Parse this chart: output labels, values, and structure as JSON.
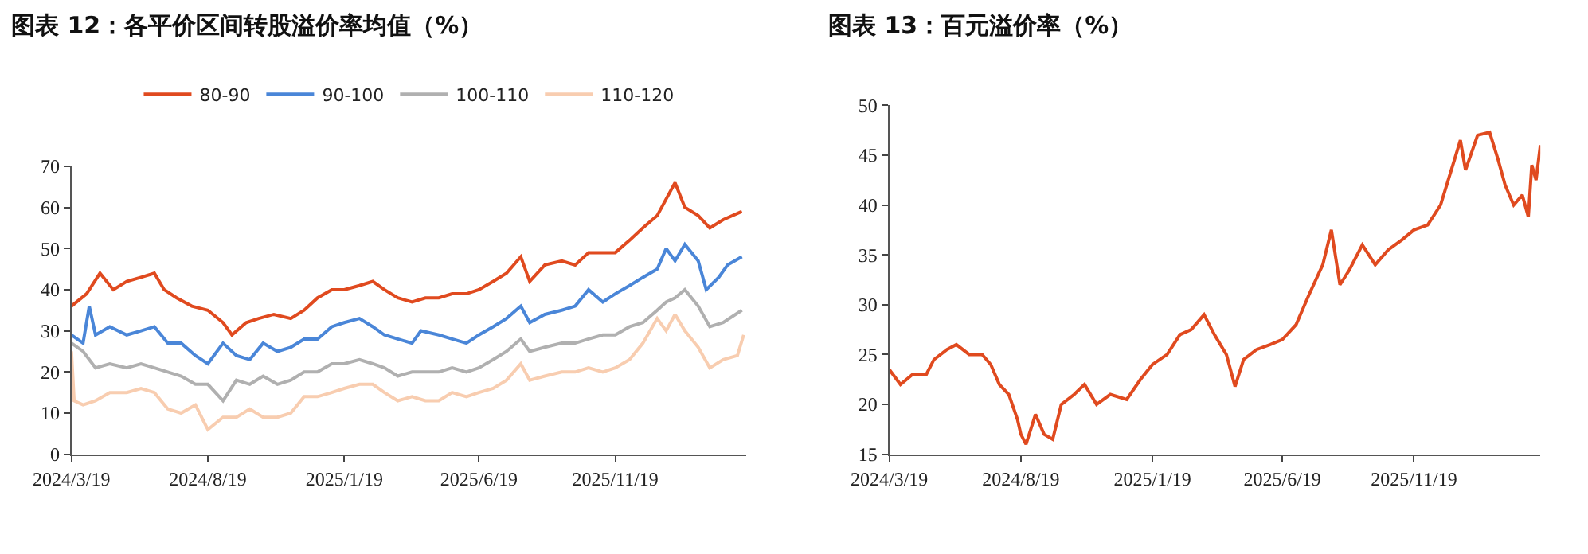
{
  "chart_data": [
    {
      "type": "line",
      "title": "图表 12：各平价区间转股溢价率均值（%）",
      "legend": "top",
      "marker": "none",
      "line_style": "solid",
      "ylim": [
        0,
        70
      ],
      "yticks": [
        0,
        10,
        20,
        30,
        40,
        50,
        60,
        70
      ],
      "xlim": [
        "2024-03-19",
        "2026-04-15"
      ],
      "xticks": [
        {
          "value": "2024-03-19",
          "label": "2024/3/19"
        },
        {
          "value": "2024-08-19",
          "label": "2024/8/19"
        },
        {
          "value": "2025-01-19",
          "label": "2025/1/19"
        },
        {
          "value": "2025-06-19",
          "label": "2025/6/19"
        },
        {
          "value": "2025-11-19",
          "label": "2025/11/19"
        }
      ],
      "series": [
        {
          "name": "80-90",
          "color": "#e04a1f",
          "x": [
            "2024-03-19",
            "2024-04-05",
            "2024-04-20",
            "2024-05-05",
            "2024-05-20",
            "2024-06-05",
            "2024-06-20",
            "2024-07-01",
            "2024-07-15",
            "2024-08-01",
            "2024-08-19",
            "2024-09-05",
            "2024-09-15",
            "2024-10-01",
            "2024-10-15",
            "2024-11-01",
            "2024-11-20",
            "2024-12-05",
            "2024-12-20",
            "2025-01-05",
            "2025-01-19",
            "2025-02-05",
            "2025-02-20",
            "2025-03-05",
            "2025-03-20",
            "2025-04-05",
            "2025-04-20",
            "2025-05-05",
            "2025-05-20",
            "2025-06-05",
            "2025-06-19",
            "2025-07-05",
            "2025-07-20",
            "2025-08-05",
            "2025-08-15",
            "2025-09-01",
            "2025-09-20",
            "2025-10-05",
            "2025-10-20",
            "2025-11-05",
            "2025-11-19",
            "2025-12-05",
            "2025-12-20",
            "2026-01-05",
            "2026-01-15",
            "2026-01-25",
            "2026-02-05",
            "2026-02-20",
            "2026-03-05",
            "2026-03-20",
            "2026-04-10"
          ],
          "values": [
            36,
            39,
            44,
            40,
            42,
            43,
            44,
            40,
            38,
            36,
            35,
            32,
            29,
            32,
            33,
            34,
            33,
            35,
            38,
            40,
            40,
            41,
            42,
            40,
            38,
            37,
            38,
            38,
            39,
            39,
            40,
            42,
            44,
            48,
            42,
            46,
            47,
            46,
            49,
            49,
            49,
            52,
            55,
            58,
            62,
            66,
            60,
            58,
            55,
            57,
            59
          ]
        },
        {
          "name": "90-100",
          "color": "#4a86d8",
          "x": [
            "2024-03-19",
            "2024-04-01",
            "2024-04-08",
            "2024-04-15",
            "2024-05-01",
            "2024-05-20",
            "2024-06-05",
            "2024-06-20",
            "2024-07-05",
            "2024-07-20",
            "2024-08-05",
            "2024-08-19",
            "2024-09-05",
            "2024-09-20",
            "2024-10-05",
            "2024-10-20",
            "2024-11-05",
            "2024-11-20",
            "2024-12-05",
            "2024-12-20",
            "2025-01-05",
            "2025-01-19",
            "2025-02-05",
            "2025-02-20",
            "2025-03-05",
            "2025-03-20",
            "2025-04-05",
            "2025-04-15",
            "2025-05-05",
            "2025-05-20",
            "2025-06-05",
            "2025-06-19",
            "2025-07-05",
            "2025-07-20",
            "2025-08-05",
            "2025-08-15",
            "2025-09-01",
            "2025-09-20",
            "2025-10-05",
            "2025-10-20",
            "2025-11-05",
            "2025-11-19",
            "2025-12-05",
            "2025-12-20",
            "2026-01-05",
            "2026-01-15",
            "2026-01-25",
            "2026-02-05",
            "2026-02-20",
            "2026-03-01",
            "2026-03-15",
            "2026-03-25",
            "2026-04-10"
          ],
          "values": [
            29,
            27,
            36,
            29,
            31,
            29,
            30,
            31,
            27,
            27,
            24,
            22,
            27,
            24,
            23,
            27,
            25,
            26,
            28,
            28,
            31,
            32,
            33,
            31,
            29,
            28,
            27,
            30,
            29,
            28,
            27,
            29,
            31,
            33,
            36,
            32,
            34,
            35,
            36,
            40,
            37,
            39,
            41,
            43,
            45,
            50,
            47,
            51,
            47,
            40,
            43,
            46,
            48
          ]
        },
        {
          "name": "100-110",
          "color": "#b0b0b0",
          "x": [
            "2024-03-19",
            "2024-04-01",
            "2024-04-15",
            "2024-05-01",
            "2024-05-20",
            "2024-06-05",
            "2024-06-20",
            "2024-07-05",
            "2024-07-20",
            "2024-08-05",
            "2024-08-19",
            "2024-09-05",
            "2024-09-20",
            "2024-10-05",
            "2024-10-20",
            "2024-11-05",
            "2024-11-20",
            "2024-12-05",
            "2024-12-20",
            "2025-01-05",
            "2025-01-19",
            "2025-02-05",
            "2025-02-20",
            "2025-03-05",
            "2025-03-20",
            "2025-04-05",
            "2025-04-20",
            "2025-05-05",
            "2025-05-20",
            "2025-06-05",
            "2025-06-19",
            "2025-07-05",
            "2025-07-20",
            "2025-08-05",
            "2025-08-15",
            "2025-09-01",
            "2025-09-20",
            "2025-10-05",
            "2025-10-20",
            "2025-11-05",
            "2025-11-19",
            "2025-12-05",
            "2025-12-20",
            "2026-01-05",
            "2026-01-15",
            "2026-01-25",
            "2026-02-05",
            "2026-02-20",
            "2026-03-05",
            "2026-03-20",
            "2026-04-10"
          ],
          "values": [
            27,
            25,
            21,
            22,
            21,
            22,
            21,
            20,
            19,
            17,
            17,
            13,
            18,
            17,
            19,
            17,
            18,
            20,
            20,
            22,
            22,
            23,
            22,
            21,
            19,
            20,
            20,
            20,
            21,
            20,
            21,
            23,
            25,
            28,
            25,
            26,
            27,
            27,
            28,
            29,
            29,
            31,
            32,
            35,
            37,
            38,
            40,
            36,
            31,
            32,
            35
          ]
        },
        {
          "name": "110-120",
          "color": "#f8cdb0",
          "x": [
            "2024-03-19",
            "2024-03-22",
            "2024-04-01",
            "2024-04-15",
            "2024-05-01",
            "2024-05-20",
            "2024-06-05",
            "2024-06-20",
            "2024-07-05",
            "2024-07-20",
            "2024-08-05",
            "2024-08-19",
            "2024-09-05",
            "2024-09-20",
            "2024-10-05",
            "2024-10-20",
            "2024-11-05",
            "2024-11-20",
            "2024-12-05",
            "2024-12-20",
            "2025-01-05",
            "2025-01-19",
            "2025-02-05",
            "2025-02-20",
            "2025-03-05",
            "2025-03-20",
            "2025-04-05",
            "2025-04-20",
            "2025-05-05",
            "2025-05-20",
            "2025-06-05",
            "2025-06-19",
            "2025-07-05",
            "2025-07-20",
            "2025-08-05",
            "2025-08-15",
            "2025-09-01",
            "2025-09-20",
            "2025-10-05",
            "2025-10-20",
            "2025-11-05",
            "2025-11-19",
            "2025-12-05",
            "2025-12-20",
            "2026-01-05",
            "2026-01-15",
            "2026-01-25",
            "2026-02-05",
            "2026-02-20",
            "2026-03-05",
            "2026-03-20",
            "2026-04-05",
            "2026-04-12"
          ],
          "values": [
            25,
            13,
            12,
            13,
            15,
            15,
            16,
            15,
            11,
            10,
            12,
            6,
            9,
            9,
            11,
            9,
            9,
            10,
            14,
            14,
            15,
            16,
            17,
            17,
            15,
            13,
            14,
            13,
            13,
            15,
            14,
            15,
            16,
            18,
            22,
            18,
            19,
            20,
            20,
            21,
            20,
            21,
            23,
            27,
            33,
            30,
            34,
            30,
            26,
            21,
            23,
            24,
            29
          ]
        }
      ]
    },
    {
      "type": "line",
      "title": "图表 13：百元溢价率（%）",
      "marker": "none",
      "line_style": "solid",
      "ylim": [
        15,
        50
      ],
      "yticks": [
        15,
        20,
        25,
        30,
        35,
        40,
        45,
        50
      ],
      "xlim": [
        "2024-03-19",
        "2026-04-15"
      ],
      "xticks": [
        {
          "value": "2024-03-19",
          "label": "2024/3/19"
        },
        {
          "value": "2024-08-19",
          "label": "2024/8/19"
        },
        {
          "value": "2025-01-19",
          "label": "2025/1/19"
        },
        {
          "value": "2025-06-19",
          "label": "2025/6/19"
        },
        {
          "value": "2025-11-19",
          "label": "2025/11/19"
        }
      ],
      "series": [
        {
          "color": "#e04a1f",
          "x": [
            "2024-03-19",
            "2024-04-01",
            "2024-04-15",
            "2024-05-01",
            "2024-05-10",
            "2024-05-25",
            "2024-06-05",
            "2024-06-20",
            "2024-07-05",
            "2024-07-15",
            "2024-07-25",
            "2024-08-05",
            "2024-08-15",
            "2024-08-19",
            "2024-08-25",
            "2024-09-05",
            "2024-09-15",
            "2024-09-25",
            "2024-10-05",
            "2024-10-20",
            "2024-11-01",
            "2024-11-15",
            "2024-12-01",
            "2024-12-20",
            "2025-01-05",
            "2025-01-19",
            "2025-02-05",
            "2025-02-20",
            "2025-03-05",
            "2025-03-20",
            "2025-04-01",
            "2025-04-15",
            "2025-04-25",
            "2025-05-05",
            "2025-05-20",
            "2025-06-05",
            "2025-06-19",
            "2025-07-05",
            "2025-07-20",
            "2025-08-05",
            "2025-08-15",
            "2025-08-25",
            "2025-09-05",
            "2025-09-20",
            "2025-10-05",
            "2025-10-20",
            "2025-11-05",
            "2025-11-19",
            "2025-12-05",
            "2025-12-20",
            "2026-01-05",
            "2026-01-12",
            "2026-01-18",
            "2026-02-01",
            "2026-02-15",
            "2026-02-25",
            "2026-03-05",
            "2026-03-15",
            "2026-03-25",
            "2026-04-01",
            "2026-04-05",
            "2026-04-10",
            "2026-04-15"
          ],
          "values": [
            23.5,
            22,
            23,
            23,
            24.5,
            25.5,
            26,
            25,
            25,
            24,
            22,
            21,
            18.5,
            17,
            16,
            19,
            17,
            16.5,
            20,
            21,
            22,
            20,
            21,
            20.5,
            22.5,
            24,
            25,
            27,
            27.5,
            29,
            27,
            25,
            21.8,
            24.5,
            25.5,
            26,
            26.5,
            28,
            31,
            34,
            37.5,
            32,
            33.5,
            36,
            34,
            35.5,
            36.5,
            37.5,
            38,
            40,
            44.5,
            46.5,
            43.5,
            47,
            47.3,
            44.5,
            42,
            40,
            41,
            38.8,
            44,
            42.5,
            46
          ]
        }
      ]
    }
  ]
}
